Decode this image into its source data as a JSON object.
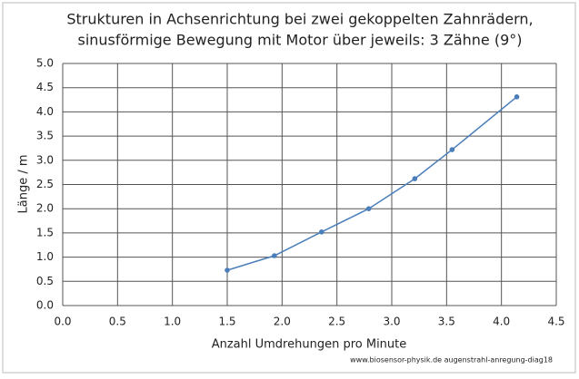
{
  "chart_data": {
    "type": "line",
    "title": [
      "Strukturen in Achsenrichtung bei zwei gekoppelten Zahnrädern,",
      "sinusförmige Bewegung mit Motor über jeweils: 3 Zähne (9°)"
    ],
    "x_label": "Anzahl Umdrehungen pro Minute",
    "y_label": "Länge / m",
    "credit": "www.biosensor-physik.de augenstrahl-anregung-diag18",
    "x": [
      1.5,
      1.93,
      2.36,
      2.79,
      3.21,
      3.55,
      4.14
    ],
    "series": [
      {
        "color": "#4a7ebb",
        "values": [
          0.73,
          1.03,
          1.52,
          2.0,
          2.62,
          3.22,
          4.31
        ]
      }
    ],
    "xlim": [
      0,
      4.5
    ],
    "xticks": [
      {
        "value": 0,
        "label": "0.0"
      },
      {
        "value": 0.5,
        "label": "0.5"
      },
      {
        "value": 1,
        "label": "1.0"
      },
      {
        "value": 1.5,
        "label": "1.5"
      },
      {
        "value": 2,
        "label": "2.0"
      },
      {
        "value": 2.5,
        "label": "2.5"
      },
      {
        "value": 3,
        "label": "3.0"
      },
      {
        "value": 3.5,
        "label": "3.5"
      },
      {
        "value": 4,
        "label": "4.0"
      },
      {
        "value": 4.5,
        "label": "4.5"
      }
    ],
    "ylim": [
      0,
      5
    ],
    "yticks": [
      {
        "value": 0,
        "label": "0.0"
      },
      {
        "value": 0.5,
        "label": "0.5"
      },
      {
        "value": 1,
        "label": "1.0"
      },
      {
        "value": 1.5,
        "label": "1.5"
      },
      {
        "value": 2,
        "label": "2.0"
      },
      {
        "value": 2.5,
        "label": "2.5"
      },
      {
        "value": 3,
        "label": "3.0"
      },
      {
        "value": 3.5,
        "label": "3.5"
      },
      {
        "value": 4,
        "label": "4.0"
      },
      {
        "value": 4.5,
        "label": "4.5"
      },
      {
        "value": 5,
        "label": "5.0"
      }
    ],
    "grid": true
  }
}
